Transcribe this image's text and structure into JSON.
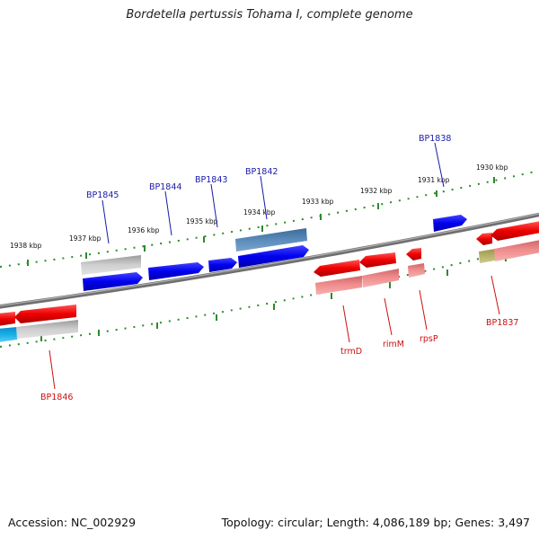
{
  "title": "Bordetella pertussis Tohama I, complete genome",
  "footer": {
    "accession": "Accession: NC_002929",
    "summary": "Topology: circular; Length: 4,086,189 bp; Genes: 3,497"
  },
  "scale": {
    "tick_labels": [
      "1938 kbp",
      "1937 kbp",
      "1936 kbp",
      "1935 kbp",
      "1934 kbp",
      "1933 kbp",
      "1932 kbp",
      "1931 kbp",
      "1930 kbp"
    ]
  },
  "genes": {
    "upper": [
      "BP1845",
      "BP1844",
      "BP1843",
      "BP1842",
      "BP1838"
    ],
    "lower": [
      "BP1846",
      "trmD",
      "rimM",
      "rpsP",
      "BP1837"
    ]
  },
  "colors": {
    "backbone": "#777777",
    "scale_dots": "#2d8a2d",
    "forward_gene": "#0000ee",
    "reverse_gene": "#ee0000",
    "forward_label": "#1a1aaa",
    "reverse_label": "#cc1111",
    "pseudo_gray": "#bdbdbd",
    "steel_blue": "#4f80b0",
    "cyan": "#18b0e8",
    "olive": "#b7b36a",
    "pink": "#ee8888"
  }
}
